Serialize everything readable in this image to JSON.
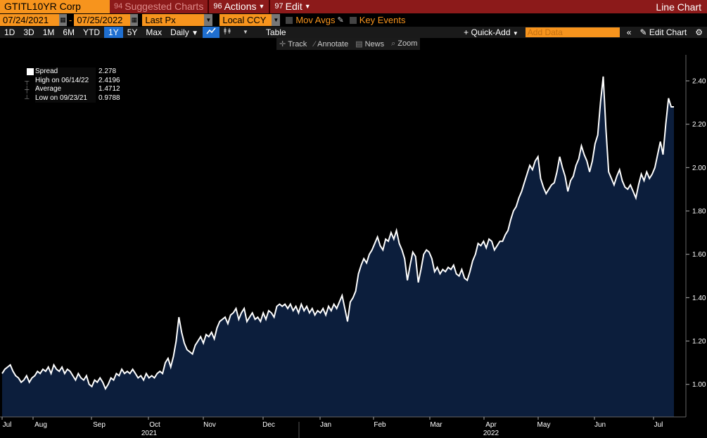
{
  "topbar": {
    "ticker": "GTITL10YR Corp",
    "suggested": {
      "num": "94",
      "label": "Suggested Charts"
    },
    "actions": {
      "num": "96",
      "label": "Actions"
    },
    "edit": {
      "num": "97",
      "label": "Edit"
    },
    "mode": "Line Chart"
  },
  "daterow": {
    "start_date": "07/24/2021",
    "end_date": "07/25/2022",
    "dash": "-",
    "field": "Last Px",
    "currency": "Local CCY",
    "mov_avgs": "Mov Avgs",
    "key_events": "Key Events"
  },
  "periodrow": {
    "periods": [
      "1D",
      "3D",
      "1M",
      "6M",
      "YTD",
      "1Y",
      "5Y",
      "Max"
    ],
    "active_period": "1Y",
    "frequency": "Daily",
    "table": "Table",
    "quick_add": "+ Quick-Add",
    "add_data_placeholder": "Add Data",
    "edit_chart": "Edit Chart"
  },
  "tools": [
    "Track",
    "Annotate",
    "News",
    "Zoom"
  ],
  "legend": {
    "rows": [
      {
        "label": "Spread",
        "value": "2.278"
      },
      {
        "label": "High on 06/14/22",
        "value": "2.4196"
      },
      {
        "label": "Average",
        "value": "1.4712"
      },
      {
        "label": "Low on 09/23/21",
        "value": "0.9788"
      }
    ]
  },
  "colors": {
    "accent": "#f7941d",
    "topbar": "#8c1a1a",
    "area_fill": "#0c1e3c",
    "line": "#ffffff",
    "active": "#1f6fd1"
  },
  "chart_data": {
    "type": "area",
    "series": [
      {
        "name": "Spread",
        "values": [
          1.05,
          1.07,
          1.08,
          1.09,
          1.06,
          1.04,
          1.03,
          1.01,
          1.02,
          1.04,
          1.01,
          1.03,
          1.04,
          1.06,
          1.05,
          1.07,
          1.06,
          1.08,
          1.05,
          1.09,
          1.07,
          1.06,
          1.08,
          1.05,
          1.07,
          1.06,
          1.04,
          1.02,
          1.05,
          1.03,
          1.02,
          1.04,
          1.0,
          0.99,
          1.02,
          1.01,
          1.03,
          1.01,
          0.98,
          1.0,
          1.03,
          1.02,
          1.05,
          1.04,
          1.07,
          1.05,
          1.06,
          1.05,
          1.07,
          1.05,
          1.03,
          1.04,
          1.02,
          1.05,
          1.03,
          1.04,
          1.03,
          1.05,
          1.06,
          1.05,
          1.1,
          1.12,
          1.08,
          1.13,
          1.2,
          1.31,
          1.24,
          1.19,
          1.16,
          1.15,
          1.14,
          1.18,
          1.2,
          1.22,
          1.19,
          1.23,
          1.22,
          1.24,
          1.21,
          1.26,
          1.29,
          1.3,
          1.31,
          1.28,
          1.32,
          1.33,
          1.35,
          1.3,
          1.33,
          1.35,
          1.29,
          1.31,
          1.33,
          1.3,
          1.31,
          1.29,
          1.33,
          1.3,
          1.34,
          1.33,
          1.31,
          1.36,
          1.37,
          1.36,
          1.37,
          1.35,
          1.37,
          1.34,
          1.36,
          1.33,
          1.37,
          1.34,
          1.36,
          1.33,
          1.35,
          1.32,
          1.34,
          1.33,
          1.35,
          1.32,
          1.36,
          1.34,
          1.37,
          1.35,
          1.38,
          1.41,
          1.35,
          1.29,
          1.38,
          1.4,
          1.43,
          1.51,
          1.55,
          1.58,
          1.56,
          1.6,
          1.62,
          1.65,
          1.68,
          1.64,
          1.62,
          1.67,
          1.66,
          1.7,
          1.67,
          1.71,
          1.65,
          1.62,
          1.58,
          1.48,
          1.55,
          1.61,
          1.59,
          1.47,
          1.53,
          1.6,
          1.62,
          1.61,
          1.58,
          1.52,
          1.54,
          1.51,
          1.53,
          1.52,
          1.54,
          1.53,
          1.55,
          1.51,
          1.5,
          1.53,
          1.49,
          1.48,
          1.52,
          1.57,
          1.6,
          1.65,
          1.64,
          1.66,
          1.63,
          1.67,
          1.66,
          1.62,
          1.64,
          1.66,
          1.66,
          1.69,
          1.71,
          1.76,
          1.8,
          1.82,
          1.86,
          1.89,
          1.93,
          1.97,
          2.01,
          1.99,
          2.03,
          2.05,
          1.95,
          1.91,
          1.88,
          1.9,
          1.92,
          1.93,
          1.98,
          2.05,
          2.0,
          1.96,
          1.89,
          1.94,
          1.96,
          2.01,
          2.04,
          2.1,
          2.06,
          2.03,
          1.98,
          2.03,
          2.11,
          2.15,
          2.3,
          2.42,
          2.18,
          1.98,
          1.95,
          1.92,
          1.96,
          1.99,
          1.94,
          1.91,
          1.9,
          1.92,
          1.89,
          1.86,
          1.92,
          1.97,
          1.94,
          1.98,
          1.95,
          1.97,
          2.0,
          2.06,
          2.12,
          2.06,
          2.2,
          2.32,
          2.28,
          2.28
        ]
      }
    ],
    "x_ticks": [
      "Jul",
      "Aug",
      "Sep",
      "Oct",
      "Nov",
      "Dec",
      "Jan",
      "Feb",
      "Mar",
      "Apr",
      "May",
      "Jun",
      "Jul"
    ],
    "years": [
      "2021",
      "2022"
    ],
    "y_ticks": [
      "1.00",
      "1.20",
      "1.40",
      "1.60",
      "1.80",
      "2.00",
      "2.20",
      "2.40"
    ],
    "ylim": [
      0.85,
      2.52
    ],
    "y_axis": "right",
    "grid": false
  }
}
